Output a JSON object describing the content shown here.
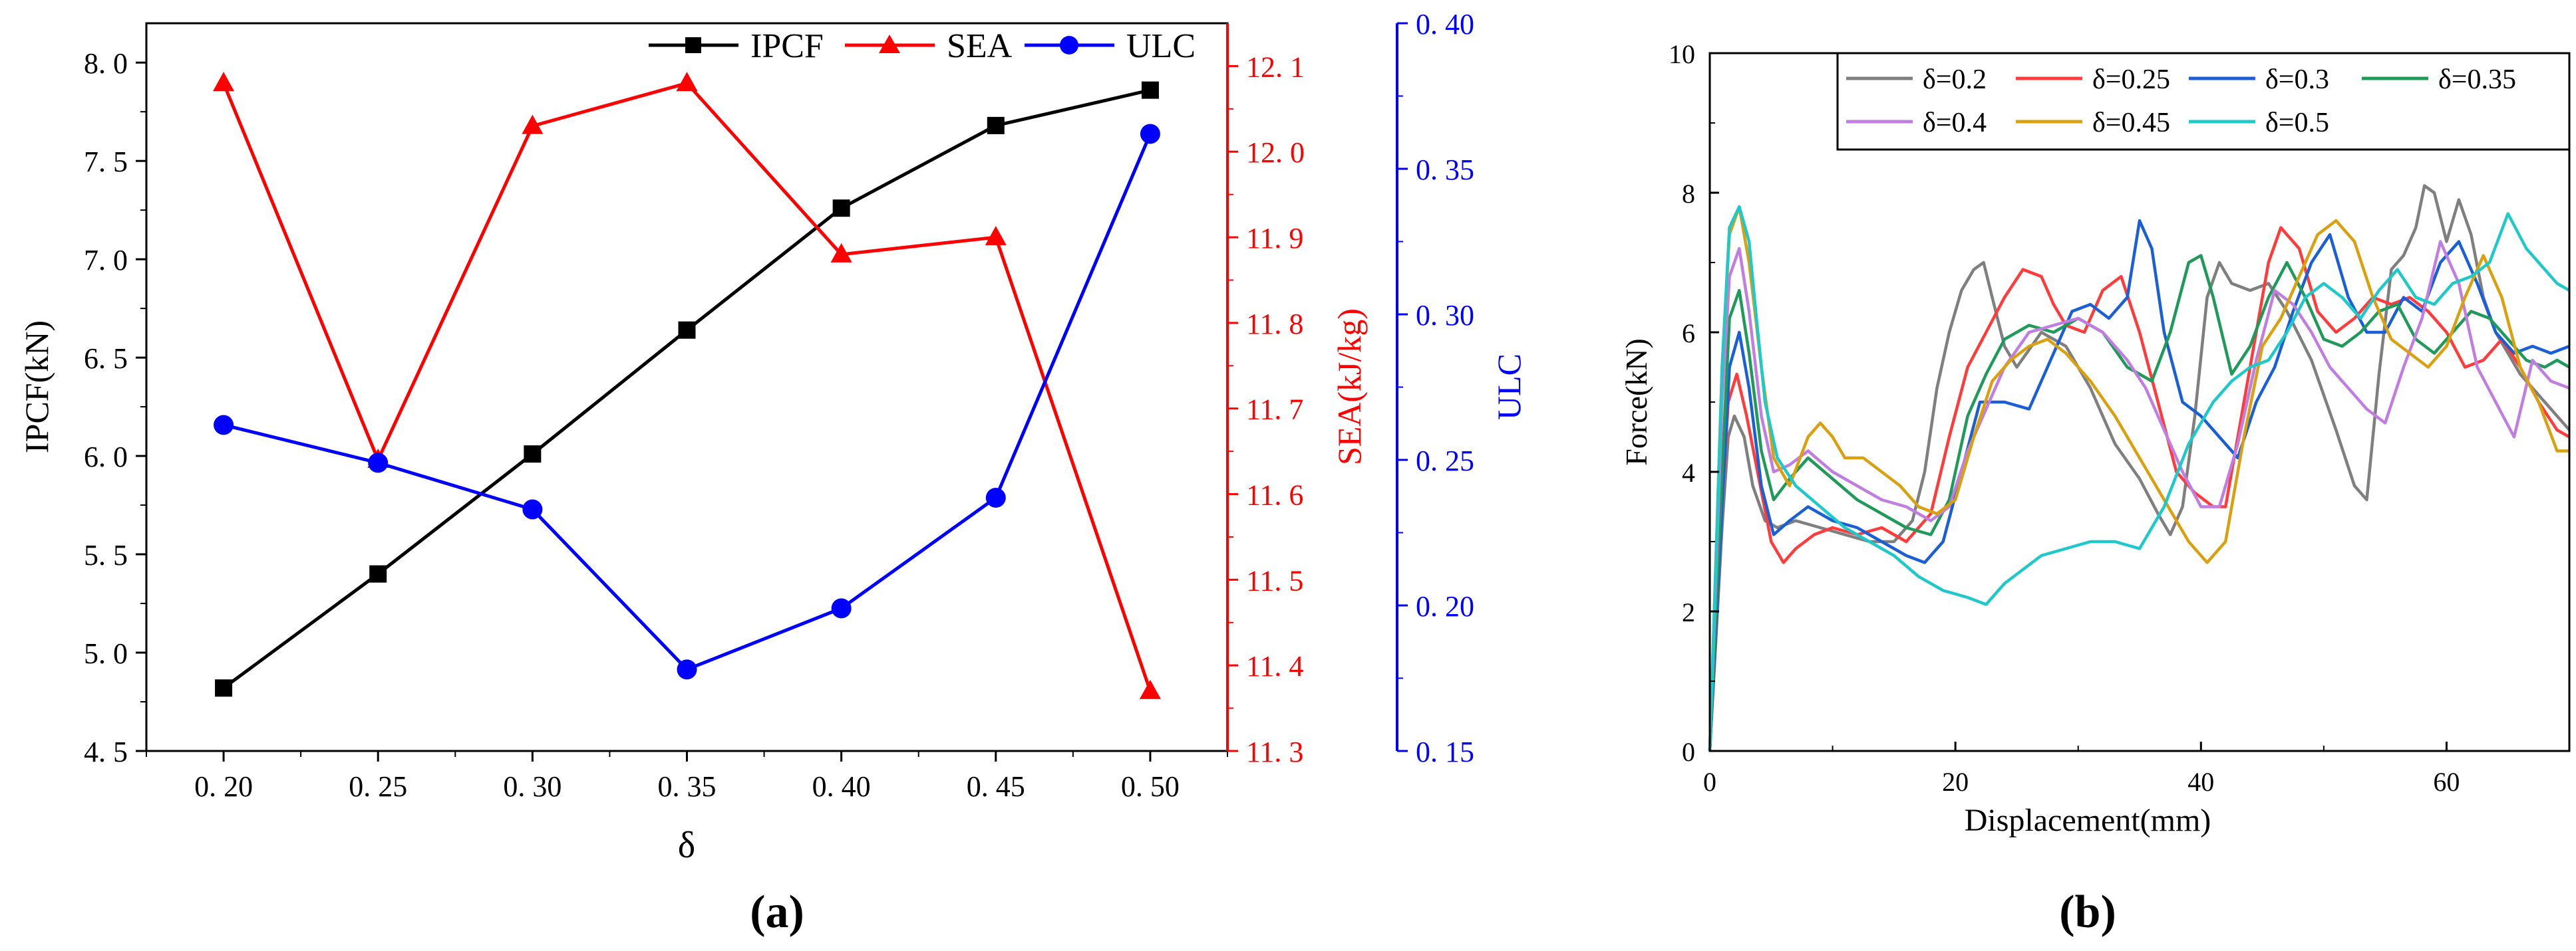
{
  "colors": {
    "ipcf": "#000000",
    "sea": "#ff0000",
    "ulc": "#0000ff",
    "d02": "#7f7f7f",
    "d025": "#ff3b3b",
    "d03": "#1a5fd6",
    "d035": "#1f9a5a",
    "d04": "#c07fe0",
    "d045": "#d9a00f",
    "d05": "#1fc9c9"
  },
  "panel_a_label": "(a)",
  "panel_b_label": "(b)",
  "chart_data": [
    {
      "type": "line",
      "title": "",
      "xlabel": "δ",
      "categories": [
        "0. 20",
        "0. 25",
        "0. 30",
        "0. 35",
        "0. 40",
        "0. 45",
        "0. 50"
      ],
      "x": [
        0.2,
        0.25,
        0.3,
        0.35,
        0.4,
        0.45,
        0.5
      ],
      "xlim": [
        0.175,
        0.525
      ],
      "left_axis": {
        "label": "IPCF(kN)",
        "ylim": [
          4.5,
          8.2
        ],
        "ticks": [
          4.5,
          5.0,
          5.5,
          6.0,
          6.5,
          7.0,
          7.5,
          8.0
        ],
        "tick_labels": [
          "4. 5",
          "5. 0",
          "5. 5",
          "6. 0",
          "6. 5",
          "7. 0",
          "7. 5",
          "8. 0"
        ]
      },
      "right_axis_1": {
        "label": "SEA(kJ/kg)",
        "ylim": [
          11.3,
          12.15
        ],
        "ticks": [
          11.3,
          11.4,
          11.5,
          11.6,
          11.7,
          11.8,
          11.9,
          12.0,
          12.1
        ],
        "tick_labels": [
          "11. 3",
          "11. 4",
          "11. 5",
          "11. 6",
          "11. 7",
          "11. 8",
          "11. 9",
          "12. 0",
          "12. 1"
        ]
      },
      "right_axis_2": {
        "label": "ULC",
        "ylim": [
          0.15,
          0.4
        ],
        "ticks": [
          0.15,
          0.2,
          0.25,
          0.3,
          0.35,
          0.4
        ],
        "tick_labels": [
          "0. 15",
          "0. 20",
          "0. 25",
          "0. 30",
          "0. 35",
          "0. 40"
        ]
      },
      "legend": {
        "placement": "top",
        "entries": [
          "IPCF",
          "SEA",
          "ULC"
        ]
      },
      "series": [
        {
          "name": "IPCF",
          "axis": "left",
          "marker": "square",
          "values": [
            4.82,
            5.4,
            6.01,
            6.64,
            7.26,
            7.68,
            7.86
          ]
        },
        {
          "name": "SEA",
          "axis": "right1",
          "marker": "triangle",
          "values": [
            12.08,
            11.64,
            12.03,
            12.08,
            11.88,
            11.9,
            11.37
          ]
        },
        {
          "name": "ULC",
          "axis": "right2",
          "marker": "circle",
          "values": [
            0.262,
            0.249,
            0.233,
            0.178,
            0.199,
            0.237,
            0.362
          ]
        }
      ]
    },
    {
      "type": "line",
      "title": "",
      "xlabel": "Displacement(mm)",
      "ylabel": "Force(kN)",
      "xlim": [
        0,
        70
      ],
      "ylim": [
        0,
        10
      ],
      "x_ticks": [
        0,
        20,
        40,
        60
      ],
      "x_tick_labels": [
        "0",
        "20",
        "40",
        "60"
      ],
      "y_ticks": [
        0,
        2,
        4,
        6,
        8,
        10
      ],
      "y_tick_labels": [
        "0",
        "2",
        "4",
        "6",
        "8",
        "10"
      ],
      "legend": {
        "placement": "top-right",
        "entries": [
          "δ=0.2",
          "δ=0.25",
          "δ=0.3",
          "δ=0.35",
          "δ=0.4",
          "δ=0.45",
          "δ=0.5"
        ]
      },
      "series": [
        {
          "name": "δ=0.2",
          "color_key": "d02",
          "x": [
            0,
            1,
            1.5,
            2,
            2.8,
            3.5,
            4.5,
            5.5,
            7,
            9,
            11,
            13,
            15,
            16.5,
            17.5,
            18.5,
            19.5,
            20.5,
            21.5,
            22.3,
            23,
            24,
            25,
            27,
            29,
            31,
            33,
            35,
            36.5,
            37.5,
            38.5,
            39.5,
            40.5,
            41.5,
            42.5,
            44,
            45.5,
            47,
            49,
            51,
            52.5,
            53.5,
            54.5,
            55.5,
            56.5,
            57.5,
            58.2,
            59,
            60,
            61,
            62,
            63,
            64,
            65,
            66,
            67,
            68,
            69,
            70
          ],
          "y": [
            0,
            3.2,
            4.5,
            4.8,
            4.5,
            3.8,
            3.3,
            3.2,
            3.3,
            3.2,
            3.1,
            3.0,
            3.0,
            3.3,
            4.0,
            5.2,
            6.0,
            6.6,
            6.9,
            7.0,
            6.5,
            5.8,
            5.5,
            6.0,
            5.8,
            5.2,
            4.4,
            3.9,
            3.4,
            3.1,
            3.5,
            4.8,
            6.5,
            7.0,
            6.7,
            6.6,
            6.7,
            6.3,
            5.6,
            4.6,
            3.8,
            3.6,
            5.4,
            6.9,
            7.1,
            7.5,
            8.1,
            8.0,
            7.3,
            7.9,
            7.4,
            6.5,
            6.0,
            5.7,
            5.4,
            5.2,
            5.0,
            4.8,
            4.6
          ]
        },
        {
          "name": "δ=0.25",
          "color_key": "d025",
          "x": [
            0,
            1,
            1.5,
            2.2,
            3,
            4,
            5,
            6,
            7,
            8.5,
            10,
            12,
            14,
            16,
            18,
            19.5,
            21,
            22.5,
            24,
            25.5,
            27,
            28,
            29,
            30.5,
            32,
            33.5,
            35,
            36.5,
            38,
            39.5,
            41,
            42,
            43,
            44.5,
            45.5,
            46.5,
            48,
            49.5,
            51,
            52.5,
            54,
            55.5,
            57,
            58.5,
            60,
            61.5,
            63,
            64.5,
            66,
            67.5,
            69,
            70
          ],
          "y": [
            0,
            3.5,
            5.0,
            5.4,
            4.8,
            3.9,
            3.0,
            2.7,
            2.9,
            3.1,
            3.2,
            3.1,
            3.2,
            3.0,
            3.4,
            4.5,
            5.5,
            6.0,
            6.5,
            6.9,
            6.8,
            6.4,
            6.1,
            6.0,
            6.6,
            6.8,
            6.0,
            5.0,
            4.0,
            3.7,
            3.5,
            3.5,
            4.5,
            6.0,
            7.0,
            7.5,
            7.2,
            6.3,
            6.0,
            6.2,
            6.5,
            6.4,
            6.5,
            6.3,
            6.0,
            5.5,
            5.6,
            5.9,
            5.5,
            5.0,
            4.6,
            4.5
          ]
        },
        {
          "name": "δ=0.3",
          "color_key": "d03",
          "x": [
            0,
            1,
            1.6,
            2.4,
            3.2,
            4.2,
            5.2,
            6.5,
            8,
            10,
            12,
            14,
            16,
            17.5,
            19,
            20.5,
            22,
            24,
            26,
            28,
            29.5,
            31,
            32.5,
            34,
            35,
            36,
            37,
            38.5,
            40,
            41.5,
            43,
            44.5,
            46,
            47.5,
            49,
            50.5,
            52,
            53.5,
            55,
            56.5,
            58,
            59.5,
            61,
            62.5,
            64,
            65.5,
            67,
            68.5,
            70
          ],
          "y": [
            0,
            3.5,
            5.5,
            6.0,
            5.2,
            3.8,
            3.1,
            3.3,
            3.5,
            3.3,
            3.2,
            3.0,
            2.8,
            2.7,
            3.0,
            4.0,
            5.0,
            5.0,
            4.9,
            5.7,
            6.3,
            6.4,
            6.2,
            6.5,
            7.6,
            7.2,
            6.0,
            5.0,
            4.8,
            4.5,
            4.2,
            5.0,
            5.5,
            6.3,
            7.0,
            7.4,
            6.5,
            6.0,
            6.0,
            6.5,
            6.3,
            7.0,
            7.3,
            6.7,
            6.0,
            5.7,
            5.8,
            5.7,
            5.8
          ]
        },
        {
          "name": "δ=0.35",
          "color_key": "d035",
          "x": [
            0,
            1,
            1.6,
            2.4,
            3.2,
            4.2,
            5.2,
            6.5,
            8,
            10,
            12,
            14,
            16,
            18,
            19.5,
            21,
            22.5,
            24,
            26,
            28,
            30,
            32,
            34,
            36,
            37.5,
            39,
            40,
            41,
            42.5,
            44,
            45.5,
            47,
            48.5,
            50,
            51.5,
            53,
            54.5,
            56,
            57.5,
            59,
            60.5,
            62,
            63.5,
            65,
            66.5,
            68,
            69,
            70
          ],
          "y": [
            0,
            4.0,
            6.2,
            6.6,
            5.7,
            4.3,
            3.6,
            3.9,
            4.2,
            3.9,
            3.6,
            3.4,
            3.2,
            3.1,
            3.6,
            4.8,
            5.4,
            5.9,
            6.1,
            6.0,
            6.2,
            6.0,
            5.5,
            5.3,
            6.0,
            7.0,
            7.1,
            6.5,
            5.4,
            5.8,
            6.5,
            7.0,
            6.5,
            5.9,
            5.8,
            6.0,
            6.3,
            6.4,
            5.9,
            5.7,
            6.0,
            6.3,
            6.2,
            5.9,
            5.6,
            5.5,
            5.6,
            5.5
          ]
        },
        {
          "name": "δ=0.4",
          "color_key": "d04",
          "x": [
            0,
            1,
            1.6,
            2.4,
            3.2,
            4.2,
            5.2,
            6.5,
            8,
            10,
            12,
            14,
            16,
            18,
            19.5,
            21,
            22.5,
            24,
            26,
            28,
            30,
            32,
            34,
            35.5,
            37,
            38.5,
            40,
            41.5,
            43,
            44.5,
            46,
            47.5,
            49,
            50.5,
            52,
            53.5,
            55,
            56.5,
            58,
            59.5,
            61,
            62.5,
            64,
            65.5,
            67,
            68.5,
            70
          ],
          "y": [
            0,
            5.0,
            6.8,
            7.2,
            6.3,
            4.8,
            4.0,
            4.1,
            4.3,
            4.0,
            3.8,
            3.6,
            3.5,
            3.3,
            3.5,
            4.3,
            4.9,
            5.5,
            6.0,
            6.1,
            6.2,
            6.0,
            5.6,
            5.2,
            4.6,
            4.0,
            3.5,
            3.5,
            4.4,
            5.6,
            6.6,
            6.4,
            6.0,
            5.5,
            5.2,
            4.9,
            4.7,
            5.5,
            6.2,
            7.3,
            6.7,
            5.5,
            5.0,
            4.5,
            5.6,
            5.3,
            5.2
          ]
        },
        {
          "name": "δ=0.45",
          "color_key": "d045",
          "x": [
            0,
            1,
            1.6,
            2.4,
            3.2,
            4.2,
            5.2,
            6.5,
            8,
            9,
            10,
            11,
            12.5,
            14,
            15.5,
            17,
            18.5,
            20,
            21.5,
            23,
            24.5,
            26,
            27.5,
            29,
            31,
            33,
            35,
            37,
            39,
            40.5,
            42,
            43.5,
            45,
            46.5,
            48,
            49.5,
            51,
            52.5,
            54,
            55.5,
            57,
            58.5,
            60,
            61.5,
            63,
            64.5,
            66,
            67.5,
            69,
            70
          ],
          "y": [
            0,
            5.5,
            7.4,
            7.8,
            7.0,
            5.5,
            4.2,
            3.8,
            4.5,
            4.7,
            4.5,
            4.2,
            4.2,
            4.0,
            3.8,
            3.5,
            3.4,
            3.6,
            4.5,
            5.3,
            5.6,
            5.8,
            5.9,
            5.7,
            5.3,
            4.8,
            4.2,
            3.6,
            3.0,
            2.7,
            3.0,
            4.5,
            5.8,
            6.2,
            6.8,
            7.4,
            7.6,
            7.3,
            6.5,
            5.9,
            5.7,
            5.5,
            5.8,
            6.5,
            7.1,
            6.5,
            5.5,
            5.0,
            4.3,
            4.3
          ]
        },
        {
          "name": "δ=0.5",
          "color_key": "d05",
          "x": [
            0,
            1,
            1.6,
            2.4,
            3.2,
            3.8,
            4.5,
            5.5,
            7,
            9,
            11,
            13,
            15,
            17,
            19,
            21,
            22.5,
            24,
            25.5,
            27,
            29,
            31,
            33,
            35,
            37,
            39,
            41,
            42.5,
            44,
            45.5,
            47,
            48.5,
            50,
            51.5,
            53,
            54.5,
            56,
            57.5,
            59,
            60.5,
            62,
            63.5,
            65,
            66.5,
            68,
            69,
            70
          ],
          "y": [
            0,
            5.5,
            7.5,
            7.8,
            7.3,
            6.2,
            5.0,
            4.2,
            3.8,
            3.5,
            3.2,
            3.0,
            2.8,
            2.5,
            2.3,
            2.2,
            2.1,
            2.4,
            2.6,
            2.8,
            2.9,
            3.0,
            3.0,
            2.9,
            3.5,
            4.4,
            5.0,
            5.3,
            5.5,
            5.6,
            6.0,
            6.5,
            6.7,
            6.5,
            6.2,
            6.6,
            6.9,
            6.5,
            6.4,
            6.7,
            6.8,
            7.0,
            7.7,
            7.2,
            6.9,
            6.7,
            6.6
          ]
        }
      ]
    }
  ]
}
